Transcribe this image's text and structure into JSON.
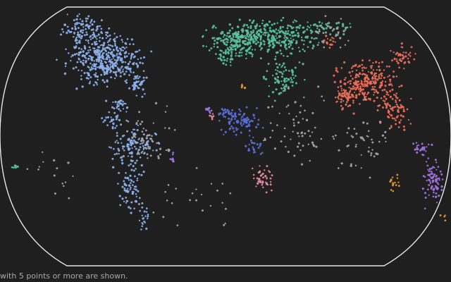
{
  "caption": "with 5 points or more are shown.",
  "colors": {
    "background": "#1f1f1f",
    "outline": "#e6e6e6",
    "caption": "#a8a8a8"
  },
  "chart_data": {
    "type": "scatter",
    "projection": "world map (rounded-rectangle outline)",
    "title": "",
    "legend": "none",
    "groups": [
      {
        "color": "#8fb3f0",
        "region": "Americas"
      },
      {
        "color": "#58c4a0",
        "region": "Europe / West & Central Asia"
      },
      {
        "color": "#ef6f59",
        "region": "South & East Asia"
      },
      {
        "color": "#5a6fd8",
        "region": "Central / West Africa"
      },
      {
        "color": "#e98aa0",
        "region": "Southern Africa"
      },
      {
        "color": "#a374e6",
        "region": "Oceania / Indonesia"
      },
      {
        "color": "#f2a52c",
        "region": "Australia / Pacific (minor)"
      },
      {
        "color": "#a9a9a9",
        "region": "Other"
      }
    ]
  }
}
